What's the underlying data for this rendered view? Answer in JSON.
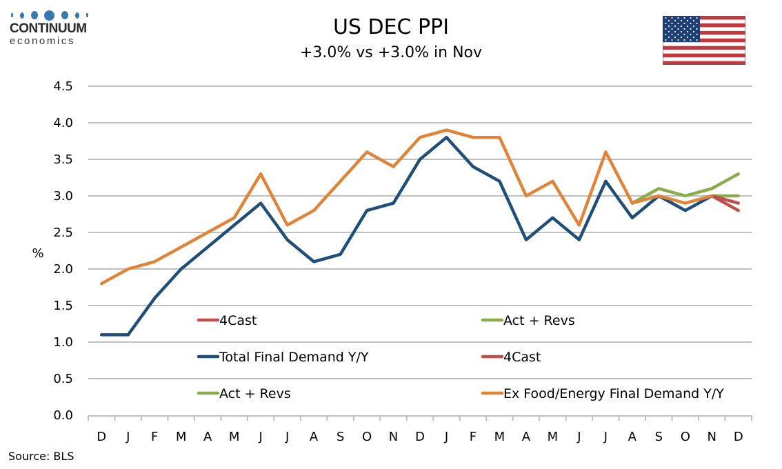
{
  "logo": {
    "name": "CONTINUUM",
    "sub": "economics",
    "color": "#3a78b0"
  },
  "flag_icon": "us-flag-icon",
  "source": "Source: BLS",
  "chart_data": {
    "type": "line",
    "title": "US DEC PPI",
    "subtitle": "+3.0% vs +3.0% in Nov",
    "xlabel": "",
    "ylabel": "%",
    "ylim": [
      0,
      4.5
    ],
    "yticks": [
      "0.0",
      "0.5",
      "1.0",
      "1.5",
      "2.0",
      "2.5",
      "3.0",
      "3.5",
      "4.0",
      "4.5"
    ],
    "grid": true,
    "categories": [
      "D",
      "J",
      "F",
      "M",
      "A",
      "M",
      "J",
      "J",
      "A",
      "S",
      "O",
      "N",
      "D",
      "J",
      "F",
      "M",
      "A",
      "M",
      "J",
      "J",
      "A",
      "S",
      "O",
      "N",
      "D"
    ],
    "series": [
      {
        "name": "Total Final Demand Y/Y",
        "color": "#1f4e79",
        "values": [
          1.1,
          1.1,
          1.6,
          2.0,
          2.3,
          2.6,
          2.9,
          2.4,
          2.1,
          2.2,
          2.8,
          2.9,
          3.5,
          3.8,
          3.4,
          3.2,
          2.4,
          2.7,
          2.4,
          3.2,
          2.7,
          3.0,
          2.8,
          3.0,
          null
        ]
      },
      {
        "name": "Ex Food/Energy Final Demand Y/Y",
        "color": "#e0843a",
        "values": [
          1.8,
          2.0,
          2.1,
          2.3,
          2.5,
          2.7,
          3.3,
          2.6,
          2.8,
          3.2,
          3.6,
          3.4,
          3.8,
          3.9,
          3.8,
          3.8,
          3.0,
          3.2,
          2.6,
          3.6,
          2.9,
          3.0,
          2.9,
          3.0,
          null
        ]
      },
      {
        "name": "Act + Revs",
        "group": "Total Final Demand",
        "color": "#8aad4b",
        "values": [
          null,
          null,
          null,
          null,
          null,
          null,
          null,
          null,
          null,
          null,
          null,
          null,
          null,
          null,
          null,
          null,
          null,
          null,
          null,
          null,
          2.9,
          3.1,
          3.0,
          3.1,
          3.3
        ]
      },
      {
        "name": "4Cast",
        "group": "Total Final Demand",
        "color": "#c0504d",
        "values": [
          null,
          null,
          null,
          null,
          null,
          null,
          null,
          null,
          null,
          null,
          null,
          null,
          null,
          null,
          null,
          null,
          null,
          null,
          null,
          null,
          null,
          null,
          null,
          3.0,
          2.8
        ]
      },
      {
        "name": "Act + Revs",
        "group": "Ex Food/Energy",
        "color": "#8aad4b",
        "values": [
          null,
          null,
          null,
          null,
          null,
          null,
          null,
          null,
          null,
          null,
          null,
          null,
          null,
          null,
          null,
          null,
          null,
          null,
          null,
          null,
          null,
          null,
          null,
          3.0,
          3.0
        ]
      },
      {
        "name": "4Cast",
        "group": "Ex Food/Energy",
        "color": "#c0504d",
        "values": [
          null,
          null,
          null,
          null,
          null,
          null,
          null,
          null,
          null,
          null,
          null,
          null,
          null,
          null,
          null,
          null,
          null,
          null,
          null,
          null,
          null,
          null,
          null,
          3.0,
          2.9
        ]
      }
    ],
    "legend": {
      "placement": "bottom-inside",
      "items": [
        {
          "label": "4Cast",
          "color": "#c0504d"
        },
        {
          "label": "Act + Revs",
          "color": "#8aad4b"
        },
        {
          "label": "Total Final Demand Y/Y",
          "color": "#1f4e79"
        },
        {
          "label": "4Cast",
          "color": "#c0504d"
        },
        {
          "label": "Act + Revs",
          "color": "#8aad4b"
        },
        {
          "label": "Ex Food/Energy Final Demand Y/Y",
          "color": "#e0843a"
        }
      ]
    }
  }
}
